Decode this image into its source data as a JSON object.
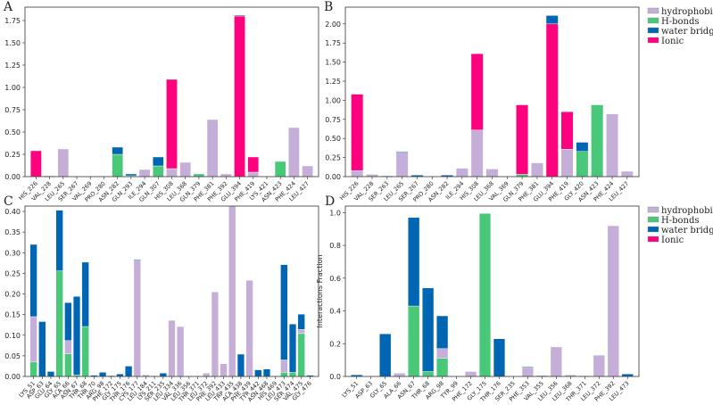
{
  "colors": {
    "H-bonds": "#48c878",
    "hydrophobic": "#c5afd8",
    "Ionic": "#ff007f",
    "water bridges": "#0066b3"
  },
  "legend": [
    "hydrophobic",
    "H-bonds",
    "water bridges",
    "Ionic"
  ],
  "chart_data": [
    {
      "type": "bar",
      "stacked": true,
      "panel": "A",
      "ylabel": "",
      "ylim": [
        0,
        1.9
      ],
      "yticks": [
        0,
        0.25,
        0.5,
        0.75,
        1.0,
        1.25,
        1.5,
        1.75
      ],
      "categories": [
        "HIS_226",
        "VAL_228",
        "LEU_265",
        "SER_267",
        "VAL_269",
        "PRO_280",
        "ASN_282",
        "GLN_293",
        "ILE_294",
        "GLN_307",
        "HIS_308",
        "LEU_368",
        "GLN_379",
        "PHE_381",
        "PHE_392",
        "GLU_394",
        "PHE_419",
        "LYS_421",
        "ASN_423",
        "PHE_424",
        "LEU_427"
      ],
      "series": [
        {
          "name": "H-bonds",
          "values": [
            0,
            0,
            0,
            0,
            0,
            0,
            0.25,
            0.01,
            0,
            0.12,
            0,
            0,
            0.03,
            0,
            0,
            0,
            0,
            0,
            0.17,
            0,
            0
          ]
        },
        {
          "name": "hydrophobic",
          "values": [
            0,
            0.01,
            0.31,
            0,
            0,
            0.005,
            0,
            0,
            0.08,
            0,
            0.09,
            0.16,
            0,
            0.64,
            0.03,
            0,
            0.05,
            0,
            0,
            0.55,
            0.12
          ]
        },
        {
          "name": "Ionic",
          "values": [
            0.29,
            0,
            0,
            0,
            0,
            0,
            0,
            0,
            0,
            0,
            1.0,
            0,
            0,
            0,
            0,
            1.8,
            0.17,
            0,
            0,
            0,
            0
          ]
        },
        {
          "name": "water bridges",
          "values": [
            0,
            0,
            0,
            0,
            0,
            0,
            0.08,
            0.02,
            0,
            0.1,
            0,
            0,
            0,
            0,
            0,
            0.01,
            0,
            0,
            0,
            0,
            0
          ]
        }
      ],
      "legend": false
    },
    {
      "type": "bar",
      "stacked": true,
      "panel": "B",
      "ylabel": "",
      "ylim": [
        0,
        2.22
      ],
      "yticks": [
        0,
        0.25,
        0.5,
        0.75,
        1.0,
        1.25,
        1.5,
        1.75,
        2.0
      ],
      "categories": [
        "HIS_226",
        "VAL_228",
        "SER_263",
        "LEU_265",
        "SER_267",
        "PRO_280",
        "ASN_282",
        "ILE_294",
        "HIS_308",
        "LEU_368",
        "VAL_369",
        "GLN_379",
        "PHE_381",
        "GLU_394",
        "PHE_419",
        "GLY_420",
        "ASN_423",
        "PHE_424",
        "LEU_427"
      ],
      "series": [
        {
          "name": "H-bonds",
          "values": [
            0,
            0,
            0,
            0,
            0,
            0,
            0,
            0,
            0,
            0,
            0,
            0.03,
            0,
            0,
            0,
            0.33,
            0.94,
            0,
            0
          ]
        },
        {
          "name": "hydrophobic",
          "values": [
            0.08,
            0.03,
            0,
            0.32,
            0,
            0,
            0,
            0.11,
            0.61,
            0.1,
            0,
            0,
            0.18,
            0,
            0.36,
            0,
            0,
            0.82,
            0.07
          ]
        },
        {
          "name": "Ionic",
          "values": [
            1.0,
            0,
            0,
            0,
            0,
            0,
            0,
            0,
            1.0,
            0,
            0,
            0.91,
            0,
            2.0,
            0.49,
            0,
            0,
            0,
            0
          ]
        },
        {
          "name": "water bridges",
          "values": [
            0,
            0,
            0.01,
            0.01,
            0.02,
            0,
            0.02,
            0,
            0,
            0,
            0,
            0,
            0,
            0.11,
            0,
            0.12,
            0,
            0,
            0
          ]
        }
      ],
      "legend": "right"
    },
    {
      "type": "bar",
      "stacked": true,
      "panel": "C",
      "ylabel": "",
      "ylim": [
        0,
        0.413
      ],
      "yticks": [
        0,
        0.05,
        0.1,
        0.15,
        0.2,
        0.25,
        0.3,
        0.35,
        0.4
      ],
      "categories": [
        "LYS_51",
        "ASP_63",
        "GLU_64",
        "GLY_65",
        "ALA_66",
        "ASN_67",
        "THR_68",
        "THR_70",
        "ARG_98",
        "PHE_172",
        "GLY_175",
        "THR_176",
        "CYS_177",
        "LEU_184",
        "LYS_211",
        "SER_235",
        "LEU_334",
        "VAL_336",
        "LEU_356",
        "THR_371",
        "LEU_372",
        "PHE_392",
        "LEU_433",
        "TRP_435",
        "ALA_438",
        "PHE_439",
        "TYR_442",
        "ASN_468",
        "HIS_469",
        "LEU_473",
        "SER_474",
        "VAL_475",
        "GLY_476"
      ],
      "series": [
        {
          "name": "H-bonds",
          "values": [
            0.035,
            0,
            0,
            0.256,
            0.055,
            0.004,
            0.121,
            0,
            0,
            0,
            0,
            0,
            0,
            0,
            0,
            0,
            0,
            0,
            0,
            0,
            0,
            0,
            0,
            0,
            0,
            0,
            0,
            0,
            0,
            0.01,
            0.01,
            0.104,
            0
          ]
        },
        {
          "name": "hydrophobic",
          "values": [
            0.11,
            0,
            0,
            0,
            0.032,
            0,
            0,
            0,
            0,
            0,
            0,
            0,
            0.282,
            0.004,
            0.002,
            0,
            0.136,
            0.121,
            0.001,
            0.001,
            0.008,
            0.205,
            0.031,
            0.42,
            0,
            0.233,
            0,
            0,
            0.001,
            0.03,
            0,
            0.01,
            0
          ]
        },
        {
          "name": "Ionic",
          "values": [
            0,
            0,
            0,
            0,
            0,
            0,
            0,
            0,
            0,
            0,
            0,
            0,
            0,
            0,
            0,
            0,
            0,
            0,
            0,
            0,
            0,
            0,
            0,
            0,
            0,
            0,
            0,
            0,
            0,
            0,
            0,
            0,
            0
          ]
        },
        {
          "name": "water bridges",
          "values": [
            0.175,
            0.133,
            0.012,
            0.147,
            0.092,
            0.19,
            0.156,
            0.003,
            0.01,
            0.002,
            0.006,
            0.025,
            0.002,
            0,
            0,
            0.008,
            0,
            0,
            0,
            0,
            0,
            0,
            0,
            0,
            0.054,
            0,
            0.016,
            0.018,
            0,
            0.231,
            0.117,
            0.037,
            0.003
          ]
        }
      ],
      "legend": false
    },
    {
      "type": "bar",
      "stacked": true,
      "panel": "D",
      "ylabel": "Interactions Fraction",
      "ylim": [
        0,
        1.04
      ],
      "yticks": [
        0,
        0.2,
        0.4,
        0.6,
        0.8,
        1.0
      ],
      "categories": [
        "LYS_51",
        "ASP_63",
        "GLY_65",
        "ALA_66",
        "ASN_67",
        "THR_68",
        "ARG_98",
        "TYR_99",
        "PHE_172",
        "GLY_175",
        "THR_176",
        "SER_235",
        "PHE_353",
        "VAL_355",
        "LEU_356",
        "LEU_368",
        "THR_371",
        "LEU_372",
        "PHE_392",
        "LEU_473"
      ],
      "series": [
        {
          "name": "H-bonds",
          "values": [
            0,
            0,
            0,
            0,
            0.43,
            0.03,
            0.11,
            0,
            0,
            0.995,
            0,
            0,
            0,
            0,
            0,
            0,
            0,
            0,
            0,
            0
          ]
        },
        {
          "name": "hydrophobic",
          "values": [
            0,
            0,
            0,
            0.02,
            0,
            0,
            0.06,
            0,
            0.03,
            0,
            0,
            0,
            0.055,
            0,
            0.18,
            0.01,
            0.005,
            0.13,
            0.92,
            0
          ]
        },
        {
          "name": "Ionic",
          "values": [
            0,
            0,
            0,
            0,
            0,
            0,
            0,
            0,
            0,
            0,
            0,
            0,
            0,
            0,
            0,
            0,
            0,
            0,
            0,
            0
          ]
        },
        {
          "name": "water bridges",
          "values": [
            0.01,
            0,
            0.26,
            0,
            0.54,
            0.51,
            0.2,
            0,
            0,
            0,
            0.23,
            0,
            0.005,
            0.005,
            0,
            0,
            0,
            0,
            0,
            0.015
          ]
        }
      ],
      "legend": "right"
    }
  ]
}
